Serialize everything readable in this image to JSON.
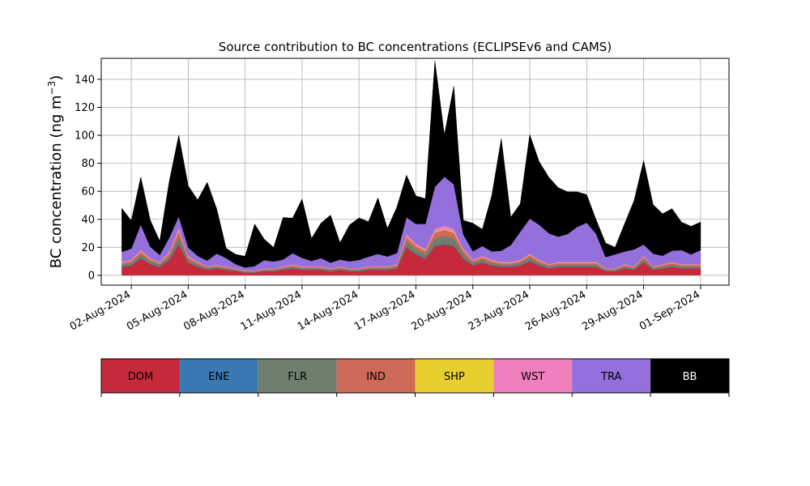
{
  "chart_data": {
    "type": "area",
    "stacked": true,
    "title": "Source contribution to BC concentrations (ECLIPSEv6 and CAMS)",
    "ylabel_main": "BC concentration (ng m",
    "ylabel_exp": "−3",
    "ylabel_close": ")",
    "xlabel": "",
    "grid": true,
    "legend_placement": "below",
    "ylim": [
      -7,
      155
    ],
    "xlim": [
      "2024-07-31T10:00",
      "2024-09-02T12:00"
    ],
    "y_ticks": [
      0,
      20,
      40,
      60,
      80,
      100,
      120,
      140
    ],
    "y_tick_labels": [
      "0",
      "20",
      "40",
      "60",
      "80",
      "100",
      "120",
      "140"
    ],
    "x_ticks": [
      "2024-08-02",
      "2024-08-05",
      "2024-08-08",
      "2024-08-11",
      "2024-08-14",
      "2024-08-17",
      "2024-08-20",
      "2024-08-23",
      "2024-08-26",
      "2024-08-29",
      "2024-09-01"
    ],
    "x_tick_labels": [
      "02-Aug-2024",
      "05-Aug-2024",
      "08-Aug-2024",
      "11-Aug-2024",
      "14-Aug-2024",
      "17-Aug-2024",
      "20-Aug-2024",
      "23-Aug-2024",
      "26-Aug-2024",
      "29-Aug-2024",
      "01-Sep-2024"
    ],
    "x": [
      "2024-08-01T12:00",
      "2024-08-02T00:00",
      "2024-08-02T12:00",
      "2024-08-03T00:00",
      "2024-08-03T12:00",
      "2024-08-04T00:00",
      "2024-08-04T12:00",
      "2024-08-05T00:00",
      "2024-08-05T12:00",
      "2024-08-06T00:00",
      "2024-08-06T12:00",
      "2024-08-07T00:00",
      "2024-08-07T12:00",
      "2024-08-08T00:00",
      "2024-08-08T12:00",
      "2024-08-09T00:00",
      "2024-08-09T12:00",
      "2024-08-10T00:00",
      "2024-08-10T12:00",
      "2024-08-11T00:00",
      "2024-08-11T12:00",
      "2024-08-12T00:00",
      "2024-08-12T12:00",
      "2024-08-13T00:00",
      "2024-08-13T12:00",
      "2024-08-14T00:00",
      "2024-08-14T12:00",
      "2024-08-15T00:00",
      "2024-08-15T12:00",
      "2024-08-16T00:00",
      "2024-08-16T12:00",
      "2024-08-17T00:00",
      "2024-08-17T12:00",
      "2024-08-18T00:00",
      "2024-08-18T12:00",
      "2024-08-19T00:00",
      "2024-08-19T12:00",
      "2024-08-20T00:00",
      "2024-08-20T12:00",
      "2024-08-21T00:00",
      "2024-08-21T12:00",
      "2024-08-22T00:00",
      "2024-08-22T12:00",
      "2024-08-23T00:00",
      "2024-08-23T12:00",
      "2024-08-24T00:00",
      "2024-08-24T12:00",
      "2024-08-25T00:00",
      "2024-08-25T12:00",
      "2024-08-26T00:00",
      "2024-08-26T12:00",
      "2024-08-27T00:00",
      "2024-08-27T12:00",
      "2024-08-28T00:00",
      "2024-08-28T12:00",
      "2024-08-29T00:00",
      "2024-08-29T12:00",
      "2024-08-30T00:00",
      "2024-08-30T12:00",
      "2024-08-31T00:00",
      "2024-08-31T12:00",
      "2024-09-01T00:00"
    ],
    "series": [
      {
        "name": "DOM",
        "color": "#c62a3a",
        "values": [
          6,
          7,
          12,
          8,
          6,
          11,
          22,
          9,
          6,
          4,
          5,
          4,
          3,
          2,
          2,
          3,
          3,
          4,
          5,
          4,
          4,
          4,
          3,
          4,
          3,
          3,
          4,
          4,
          4,
          5,
          20,
          15,
          12,
          21,
          22,
          21,
          12,
          7,
          9,
          7,
          6,
          6,
          7,
          10,
          7,
          5,
          6,
          6,
          6,
          6,
          6,
          3,
          3,
          5,
          4,
          9,
          4,
          5,
          6,
          5,
          5,
          5
        ]
      },
      {
        "name": "ENE",
        "color": "#3a7ab4",
        "values": [
          0.3,
          0.3,
          0.4,
          0.3,
          0.3,
          0.4,
          0.6,
          0.3,
          0.3,
          0.2,
          0.2,
          0.2,
          0.2,
          0.1,
          0.1,
          0.2,
          0.2,
          0.2,
          0.2,
          0.2,
          0.2,
          0.2,
          0.2,
          0.2,
          0.2,
          0.2,
          0.2,
          0.2,
          0.2,
          0.2,
          0.5,
          0.4,
          0.4,
          0.6,
          0.6,
          0.6,
          0.4,
          0.3,
          0.3,
          0.3,
          0.3,
          0.3,
          0.3,
          0.4,
          0.3,
          0.3,
          0.3,
          0.3,
          0.3,
          0.3,
          0.3,
          0.2,
          0.2,
          0.2,
          0.2,
          0.4,
          0.2,
          0.2,
          0.3,
          0.2,
          0.2,
          0.2
        ]
      },
      {
        "name": "FLR",
        "color": "#6e7f6e",
        "values": [
          1.5,
          1.6,
          2.5,
          1.8,
          1.4,
          2.3,
          5.0,
          2.0,
          1.5,
          1.0,
          1.0,
          0.9,
          0.8,
          0.6,
          0.6,
          0.7,
          0.7,
          0.9,
          1.1,
          1.0,
          0.9,
          0.9,
          0.8,
          0.9,
          0.8,
          0.8,
          0.9,
          0.9,
          1.0,
          1.2,
          4.0,
          3.2,
          2.8,
          5.0,
          5.5,
          5.0,
          3.0,
          1.7,
          2.0,
          1.6,
          1.4,
          1.4,
          1.6,
          2.2,
          1.6,
          1.2,
          1.4,
          1.4,
          1.4,
          1.4,
          1.4,
          0.8,
          0.8,
          1.2,
          1.0,
          2.0,
          1.0,
          1.2,
          1.4,
          1.2,
          1.2,
          1.2
        ]
      },
      {
        "name": "IND",
        "color": "#ce6a58",
        "values": [
          1.2,
          1.3,
          2.0,
          1.4,
          1.1,
          1.8,
          4.0,
          1.6,
          1.2,
          0.8,
          0.8,
          0.7,
          0.6,
          0.5,
          0.5,
          0.6,
          0.6,
          0.7,
          0.9,
          0.8,
          0.7,
          0.7,
          0.6,
          0.7,
          0.6,
          0.6,
          0.7,
          0.7,
          0.8,
          0.9,
          3.0,
          2.5,
          2.2,
          4.0,
          4.5,
          4.0,
          2.4,
          1.3,
          1.6,
          1.3,
          1.1,
          1.1,
          1.3,
          1.8,
          1.3,
          1.0,
          1.1,
          1.1,
          1.1,
          1.1,
          1.1,
          0.6,
          0.6,
          1.0,
          0.8,
          1.6,
          0.8,
          1.0,
          1.1,
          1.0,
          1.0,
          1.0
        ]
      },
      {
        "name": "SHP",
        "color": "#e8cf30",
        "values": [
          0.2,
          0.2,
          0.3,
          0.2,
          0.2,
          0.3,
          0.5,
          0.2,
          0.2,
          0.1,
          0.1,
          0.1,
          0.1,
          0.1,
          0.1,
          0.1,
          0.1,
          0.1,
          0.1,
          0.1,
          0.1,
          0.1,
          0.1,
          0.1,
          0.1,
          0.1,
          0.1,
          0.1,
          0.1,
          0.1,
          0.4,
          0.3,
          0.3,
          0.5,
          0.5,
          0.5,
          0.3,
          0.2,
          0.2,
          0.2,
          0.2,
          0.2,
          0.2,
          0.2,
          0.2,
          0.1,
          0.2,
          0.2,
          0.2,
          0.2,
          0.2,
          0.1,
          0.1,
          0.1,
          0.1,
          0.2,
          0.1,
          0.1,
          0.2,
          0.1,
          0.1,
          0.1
        ]
      },
      {
        "name": "WST",
        "color": "#f07fbe",
        "values": [
          0.6,
          0.7,
          1.0,
          0.7,
          0.5,
          1.0,
          2.0,
          0.8,
          0.6,
          0.4,
          0.4,
          0.4,
          0.3,
          0.3,
          0.3,
          0.3,
          0.3,
          0.4,
          0.5,
          0.4,
          0.4,
          0.4,
          0.3,
          0.4,
          0.3,
          0.3,
          0.4,
          0.4,
          0.4,
          0.5,
          1.6,
          1.3,
          1.1,
          2.0,
          2.3,
          2.0,
          1.2,
          0.7,
          0.8,
          0.7,
          0.6,
          0.6,
          0.7,
          0.9,
          0.7,
          0.5,
          0.6,
          0.6,
          0.6,
          0.6,
          0.6,
          0.3,
          0.3,
          0.5,
          0.4,
          0.8,
          0.4,
          0.5,
          0.6,
          0.5,
          0.5,
          0.5
        ]
      },
      {
        "name": "TRA",
        "color": "#9370db",
        "values": [
          7,
          8,
          18,
          8,
          5,
          10,
          8,
          6,
          4,
          4,
          8,
          6,
          3,
          2,
          3,
          6,
          5,
          5,
          8,
          6,
          4,
          6,
          4,
          5,
          5,
          6,
          7,
          9,
          7,
          8,
          12,
          14,
          18,
          30,
          35,
          32,
          10,
          6,
          7,
          6,
          8,
          12,
          20,
          25,
          25,
          22,
          18,
          20,
          25,
          28,
          20,
          8,
          10,
          9,
          12,
          8,
          9,
          6,
          8,
          10,
          7,
          10
        ]
      },
      {
        "name": "BB",
        "color": "#000000",
        "values": [
          31,
          20,
          34,
          19,
          10,
          40,
          58,
          44,
          40,
          56,
          32,
          7,
          7,
          8,
          30,
          15,
          10,
          30,
          25,
          42,
          16,
          25,
          34,
          12,
          26,
          30,
          25,
          40,
          20,
          33,
          30,
          20,
          18,
          90,
          30,
          70,
          10,
          20,
          12,
          40,
          80,
          20,
          20,
          60,
          45,
          40,
          35,
          30,
          25,
          20,
          10,
          10,
          5,
          20,
          35,
          60,
          35,
          30,
          30,
          20,
          20,
          20
        ]
      }
    ],
    "legend_entries": [
      "DOM",
      "ENE",
      "FLR",
      "IND",
      "SHP",
      "WST",
      "TRA",
      "BB"
    ]
  }
}
